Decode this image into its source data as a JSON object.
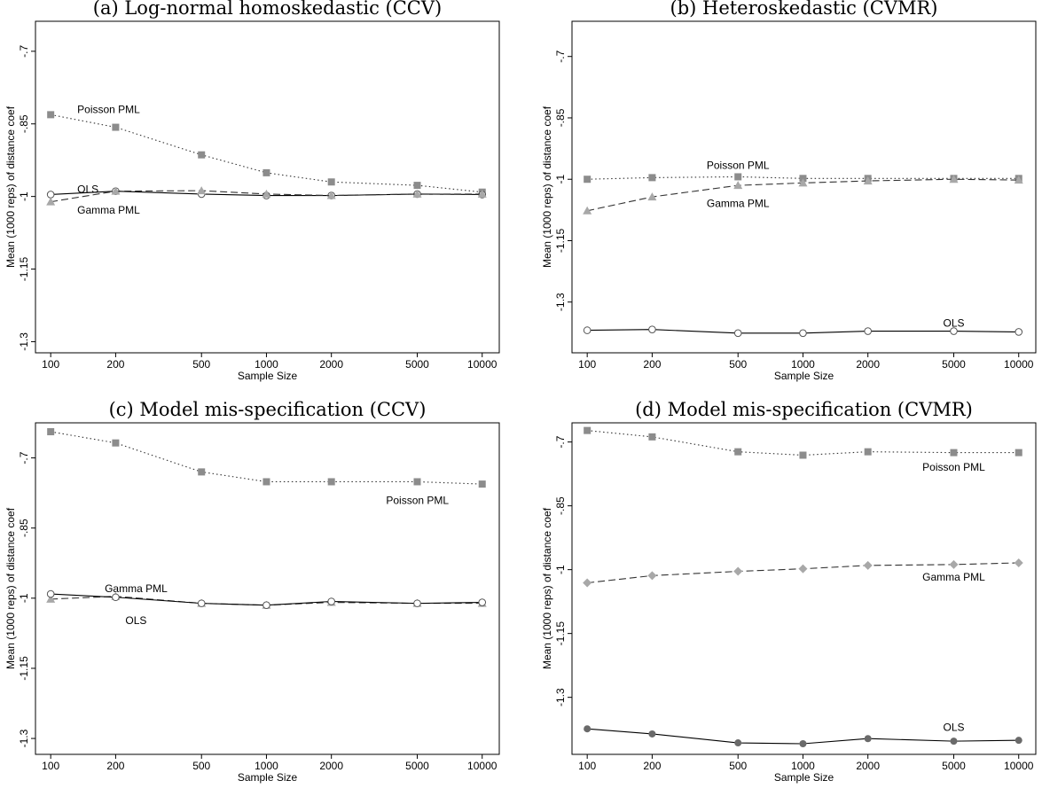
{
  "chart_data": [
    {
      "type": "line",
      "title": "(a) Log-normal homoskedastic (CCV)",
      "x_label": "Sample Size",
      "y_label": "Mean (1000 reps) of distance coef",
      "x": [
        100,
        200,
        500,
        1000,
        2000,
        5000,
        10000
      ],
      "log_x": true,
      "xlim": [
        85,
        12000
      ],
      "xticks": [
        100,
        200,
        500,
        1000,
        2000,
        5000,
        10000
      ],
      "ylim": [
        -1.323,
        -0.638
      ],
      "yticks": [
        {
          "value": -0.7,
          "label": "-.7"
        },
        {
          "value": -0.85,
          "label": "-.85"
        },
        -1,
        {
          "value": -1.15,
          "label": "-1.15"
        },
        {
          "value": -1.3,
          "label": "-1.3"
        }
      ],
      "series": [
        {
          "name": "Poisson PML",
          "color": "#8c8c8c",
          "marker": "square",
          "dash": "dotted",
          "values": [
            -0.831,
            -0.857,
            -0.914,
            -0.951,
            -0.97,
            -0.977,
            -0.991
          ]
        },
        {
          "name": "OLS",
          "color": "#555555",
          "marker": "hollow-circle",
          "dash": "solid",
          "values": [
            -0.996,
            -0.989,
            -0.995,
            -0.998,
            -0.998,
            -0.995,
            -0.996
          ]
        },
        {
          "name": "Gamma PML",
          "color": "#a8a8a8",
          "marker": "triangle",
          "dash": "dashed",
          "values": [
            -1.011,
            -0.989,
            -0.988,
            -0.995,
            -0.998,
            -0.995,
            -0.995
          ]
        }
      ]
    },
    {
      "type": "line",
      "title": "(b) Heteroskedastic (CVMR)",
      "x_label": "Sample Size",
      "y_label": "Mean (1000 reps) of distance coef",
      "x": [
        100,
        200,
        500,
        1000,
        2000,
        5000,
        10000
      ],
      "log_x": true,
      "xlim": [
        85,
        12000
      ],
      "xticks": [
        100,
        200,
        500,
        1000,
        2000,
        5000,
        10000
      ],
      "ylim": [
        -1.424,
        -0.614
      ],
      "yticks": [
        {
          "value": -0.7,
          "label": "-.7"
        },
        {
          "value": -0.85,
          "label": "-.85"
        },
        -1,
        {
          "value": -1.15,
          "label": "-1.15"
        },
        {
          "value": -1.3,
          "label": "-1.3"
        }
      ],
      "series": [
        {
          "name": "Poisson PML",
          "color": "#8c8c8c",
          "marker": "square",
          "dash": "dotted",
          "values": [
            -1.0,
            -0.996,
            -0.994,
            -0.998,
            -0.998,
            -0.998,
            -0.998
          ]
        },
        {
          "name": "Gamma PML",
          "color": "#a8a8a8",
          "marker": "triangle",
          "dash": "dashed",
          "values": [
            -1.077,
            -1.043,
            -1.015,
            -1.009,
            -1.004,
            -1.0,
            -1.002
          ]
        },
        {
          "name": "OLS",
          "color": "#555555",
          "marker": "hollow-circle",
          "dash": "solid",
          "values": [
            -1.369,
            -1.367,
            -1.376,
            -1.376,
            -1.371,
            -1.371,
            -1.373
          ]
        }
      ]
    },
    {
      "type": "line",
      "title": "(c) Model mis-specification (CCV)",
      "x_label": "Sample Size",
      "y_label": "Mean (1000 reps) of distance coef",
      "x": [
        100,
        200,
        500,
        1000,
        2000,
        5000,
        10000
      ],
      "log_x": true,
      "xlim": [
        85,
        12000
      ],
      "xticks": [
        100,
        200,
        500,
        1000,
        2000,
        5000,
        10000
      ],
      "ylim": [
        -1.334,
        -0.625
      ],
      "yticks": [
        {
          "value": -0.7,
          "label": "-.7"
        },
        {
          "value": -0.85,
          "label": "-.85"
        },
        -1,
        {
          "value": -1.15,
          "label": "-1.15"
        },
        {
          "value": -1.3,
          "label": "-1.3"
        }
      ],
      "series": [
        {
          "name": "Poisson PML",
          "color": "#8c8c8c",
          "marker": "square",
          "dash": "dotted",
          "values": [
            -0.644,
            -0.668,
            -0.73,
            -0.751,
            -0.751,
            -0.751,
            -0.756
          ]
        },
        {
          "name": "Gamma PML",
          "color": "#a8a8a8",
          "marker": "triangle",
          "dash": "dashed",
          "values": [
            -1.002,
            -0.996,
            -1.011,
            -1.015,
            -1.009,
            -1.011,
            -1.011
          ]
        },
        {
          "name": "OLS",
          "color": "#555555",
          "marker": "hollow-circle",
          "dash": "solid",
          "values": [
            -0.991,
            -0.998,
            -1.011,
            -1.015,
            -1.007,
            -1.011,
            -1.009
          ]
        }
      ]
    },
    {
      "type": "line",
      "title": "(d) Model mis-specification (CVMR)",
      "x_label": "Sample Size",
      "y_label": "Mean (1000 reps) of distance coef",
      "x": [
        100,
        200,
        500,
        1000,
        2000,
        5000,
        10000
      ],
      "log_x": true,
      "xlim": [
        85,
        12000
      ],
      "xticks": [
        100,
        200,
        500,
        1000,
        2000,
        5000,
        10000
      ],
      "ylim": [
        -1.434,
        -0.655
      ],
      "yticks": [
        {
          "value": -0.7,
          "label": "-.7"
        },
        {
          "value": -0.85,
          "label": "-.85"
        },
        -1,
        {
          "value": -1.15,
          "label": "-1.15"
        },
        {
          "value": -1.3,
          "label": "-1.3"
        }
      ],
      "series": [
        {
          "name": "Poisson PML",
          "color": "#8c8c8c",
          "marker": "square",
          "dash": "dotted",
          "values": [
            -0.673,
            -0.688,
            -0.723,
            -0.731,
            -0.723,
            -0.725,
            -0.725
          ]
        },
        {
          "name": "Gamma PML",
          "color": "#a8a8a8",
          "marker": "diamond",
          "dash": "dashed",
          "values": [
            -1.031,
            -1.014,
            -1.004,
            -0.998,
            -0.99,
            -0.988,
            -0.984
          ]
        },
        {
          "name": "OLS",
          "color": "#6a6a6a",
          "marker": "circle",
          "dash": "solid",
          "values": [
            -1.374,
            -1.386,
            -1.407,
            -1.409,
            -1.397,
            -1.403,
            -1.401
          ]
        }
      ]
    }
  ]
}
